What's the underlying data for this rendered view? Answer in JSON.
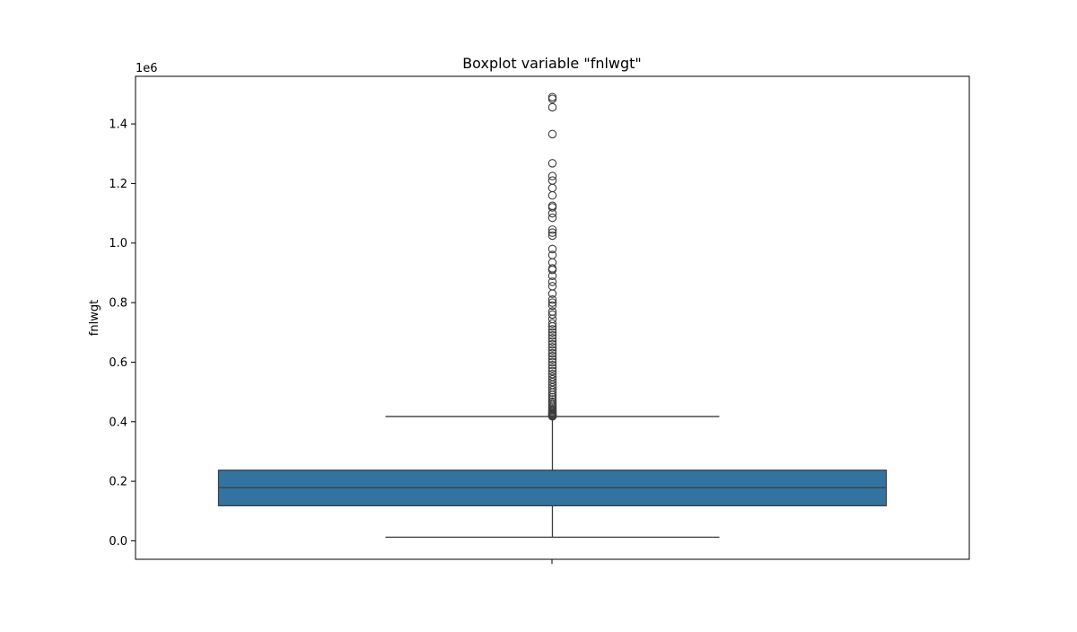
{
  "chart_data": {
    "type": "box",
    "title": "Boxplot variable \"fnlwgt\"",
    "xlabel": "",
    "ylabel": "fnlwgt",
    "y_offset_label": "1e6",
    "y_ticks": [
      0.0,
      0.2,
      0.4,
      0.6,
      0.8,
      1.0,
      1.2,
      1.4
    ],
    "y_tick_labels": [
      "0.0",
      "0.2",
      "0.4",
      "0.6",
      "0.8",
      "1.0",
      "1.2",
      "1.4"
    ],
    "ylim": [
      -0.062,
      1.56
    ],
    "box": {
      "whisker_low": 0.0123,
      "q1": 0.1178,
      "median": 0.1784,
      "q3": 0.2371,
      "whisker_high": 0.4176,
      "color": "#3274a1",
      "line_color": "#3d3d3d"
    },
    "outliers": [
      0.418,
      0.419,
      0.42,
      0.422,
      0.424,
      0.426,
      0.429,
      0.432,
      0.436,
      0.44,
      0.445,
      0.45,
      0.456,
      0.462,
      0.468,
      0.475,
      0.482,
      0.49,
      0.498,
      0.506,
      0.515,
      0.524,
      0.533,
      0.542,
      0.551,
      0.56,
      0.57,
      0.58,
      0.59,
      0.6,
      0.61,
      0.62,
      0.63,
      0.64,
      0.65,
      0.66,
      0.67,
      0.68,
      0.69,
      0.7,
      0.71,
      0.72,
      0.73,
      0.745,
      0.76,
      0.77,
      0.79,
      0.8,
      0.81,
      0.83,
      0.855,
      0.87,
      0.89,
      0.91,
      0.915,
      0.935,
      0.96,
      0.98,
      1.025,
      1.035,
      1.045,
      1.085,
      1.1,
      1.12,
      1.125,
      1.16,
      1.185,
      1.21,
      1.225,
      1.268,
      1.366,
      1.456,
      1.484,
      1.49
    ]
  }
}
